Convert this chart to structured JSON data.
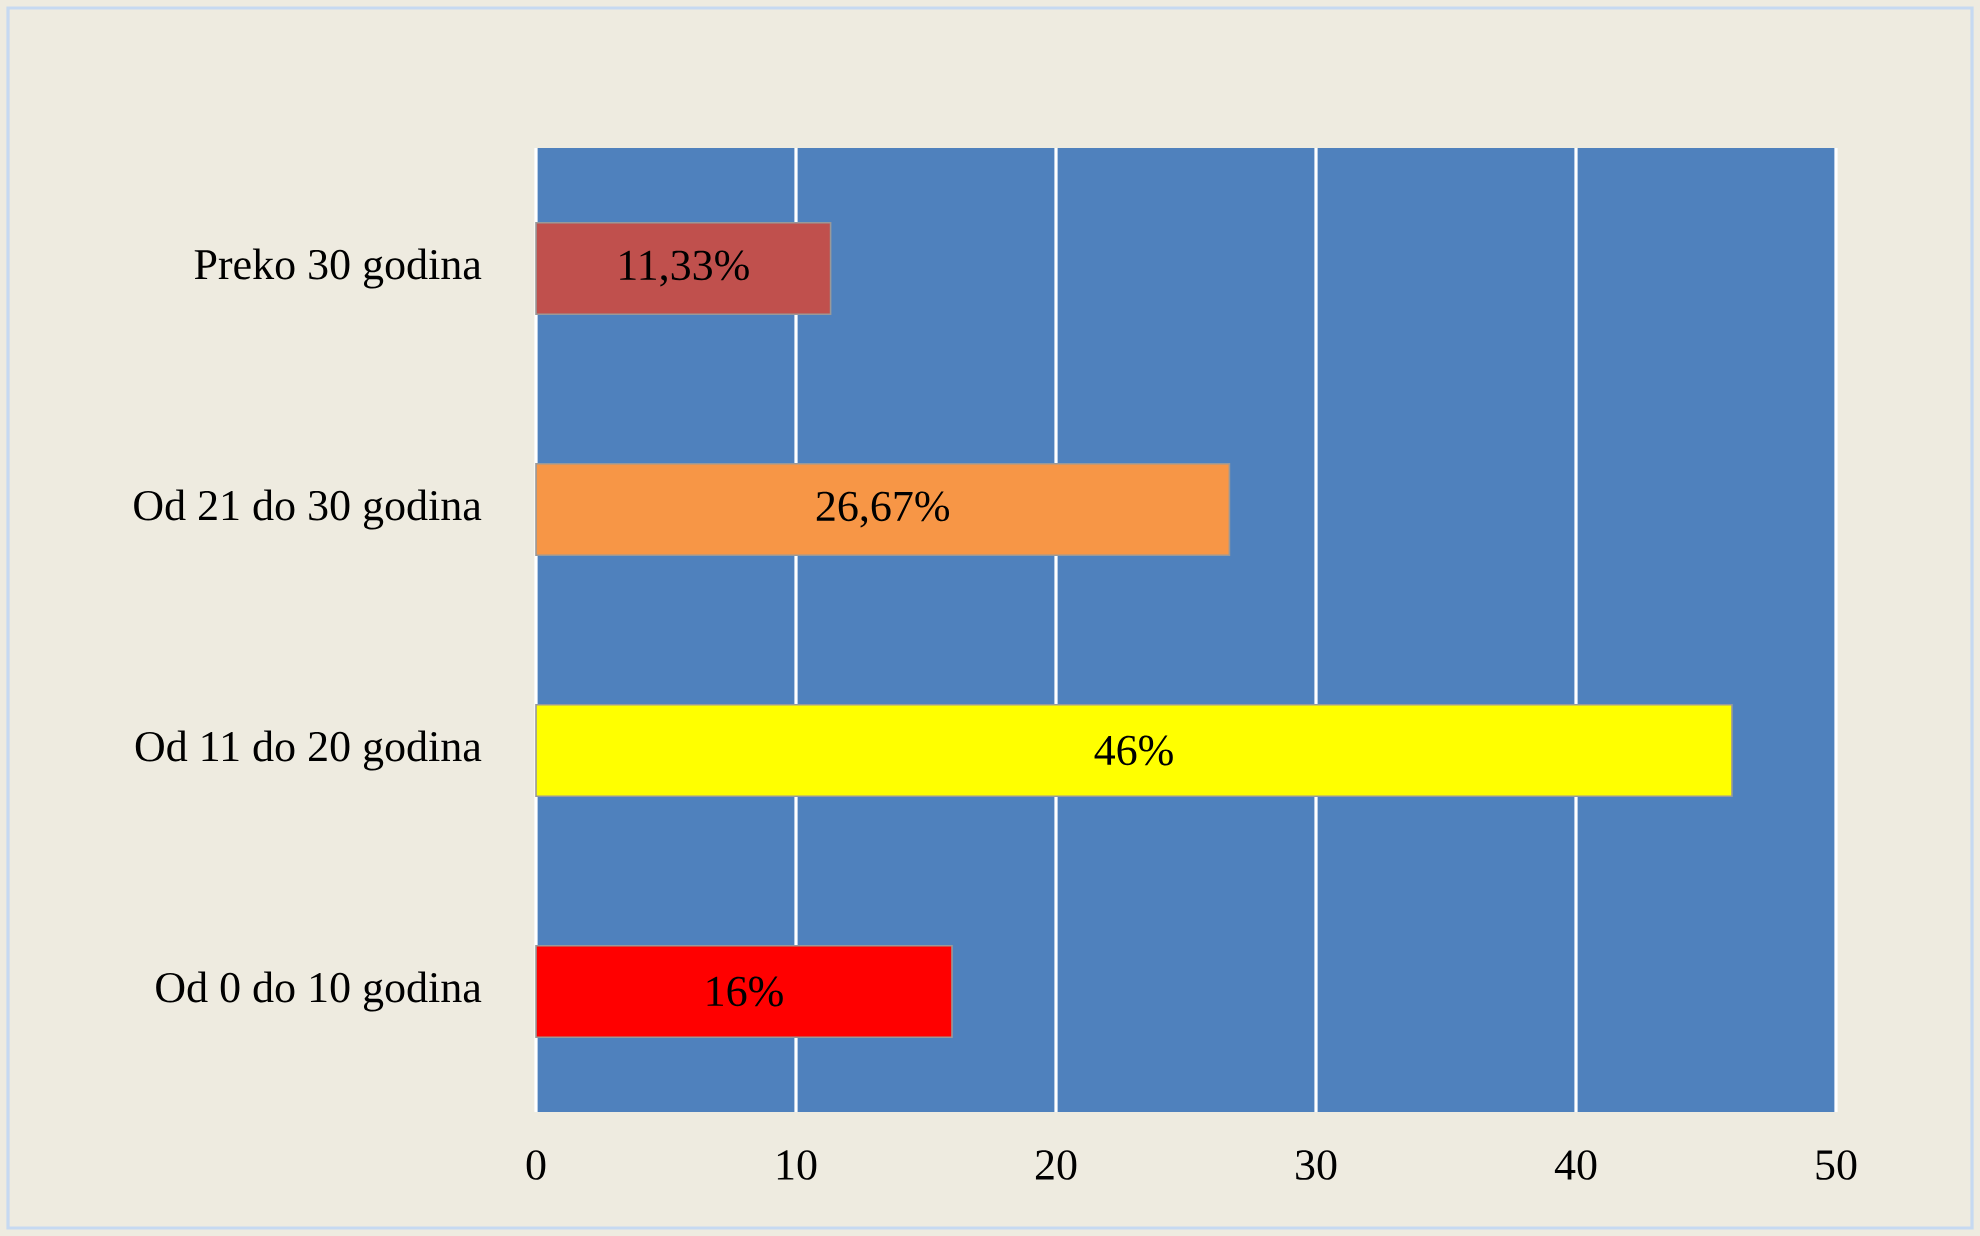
{
  "chart_data": {
    "type": "bar",
    "orientation": "horizontal",
    "categories": [
      "Preko 30 godina",
      "Od 21 do 30 godina",
      "Od 11 do 20 godina",
      "Od 0 do 10 godina"
    ],
    "values": [
      11.33,
      26.67,
      46,
      16
    ],
    "value_labels": [
      "11,33%",
      "26,67%",
      "46%",
      "16%"
    ],
    "colors": [
      "#c0504d",
      "#f79646",
      "#ffff00",
      "#ff0000"
    ],
    "xlim": [
      0,
      50
    ],
    "xticks": [
      0,
      10,
      20,
      30,
      40,
      50
    ],
    "grid": "x"
  }
}
